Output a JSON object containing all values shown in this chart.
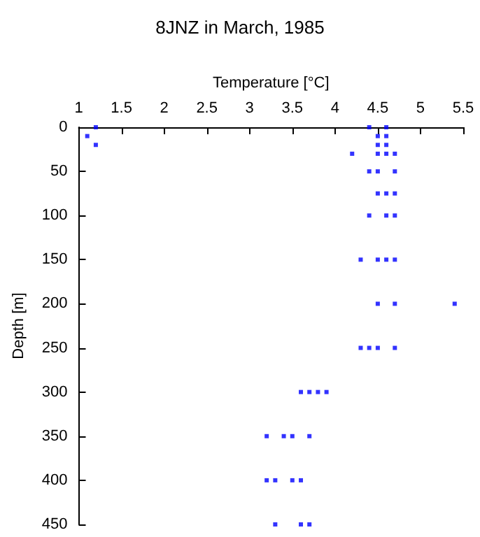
{
  "chart_data": {
    "type": "scatter",
    "title": "8JNZ in March, 1985",
    "xlabel": "Temperature [°C]",
    "ylabel": "Depth [m]",
    "x": [
      1.2,
      4.4,
      4.6,
      1.1,
      4.5,
      4.6,
      1.2,
      4.5,
      4.6,
      4.2,
      4.5,
      4.6,
      4.7,
      4.4,
      4.5,
      4.7,
      4.5,
      4.6,
      4.7,
      4.4,
      4.6,
      4.7,
      4.3,
      4.5,
      4.6,
      4.7,
      4.5,
      4.7,
      5.4,
      4.3,
      4.4,
      4.5,
      4.7,
      3.6,
      3.7,
      3.8,
      3.9,
      3.2,
      3.4,
      3.5,
      3.7,
      3.2,
      3.3,
      3.5,
      3.6,
      3.3,
      3.6,
      3.7
    ],
    "values": [
      0,
      0,
      0,
      10,
      10,
      10,
      20,
      20,
      20,
      30,
      30,
      30,
      30,
      50,
      50,
      50,
      75,
      75,
      75,
      100,
      100,
      100,
      150,
      150,
      150,
      150,
      200,
      200,
      200,
      250,
      250,
      250,
      250,
      300,
      300,
      300,
      300,
      350,
      350,
      350,
      350,
      400,
      400,
      400,
      400,
      450,
      450,
      450
    ],
    "color": "#0000ff",
    "marker": "square",
    "grid": false,
    "xlim": [
      1,
      5.5
    ],
    "xticks": [
      1,
      1.5,
      2,
      2.5,
      3,
      3.5,
      4,
      4.5,
      5,
      5.5
    ],
    "ylim": [
      450,
      0
    ],
    "yticks": [
      0,
      50,
      100,
      150,
      200,
      250,
      300,
      350,
      400,
      450
    ]
  }
}
